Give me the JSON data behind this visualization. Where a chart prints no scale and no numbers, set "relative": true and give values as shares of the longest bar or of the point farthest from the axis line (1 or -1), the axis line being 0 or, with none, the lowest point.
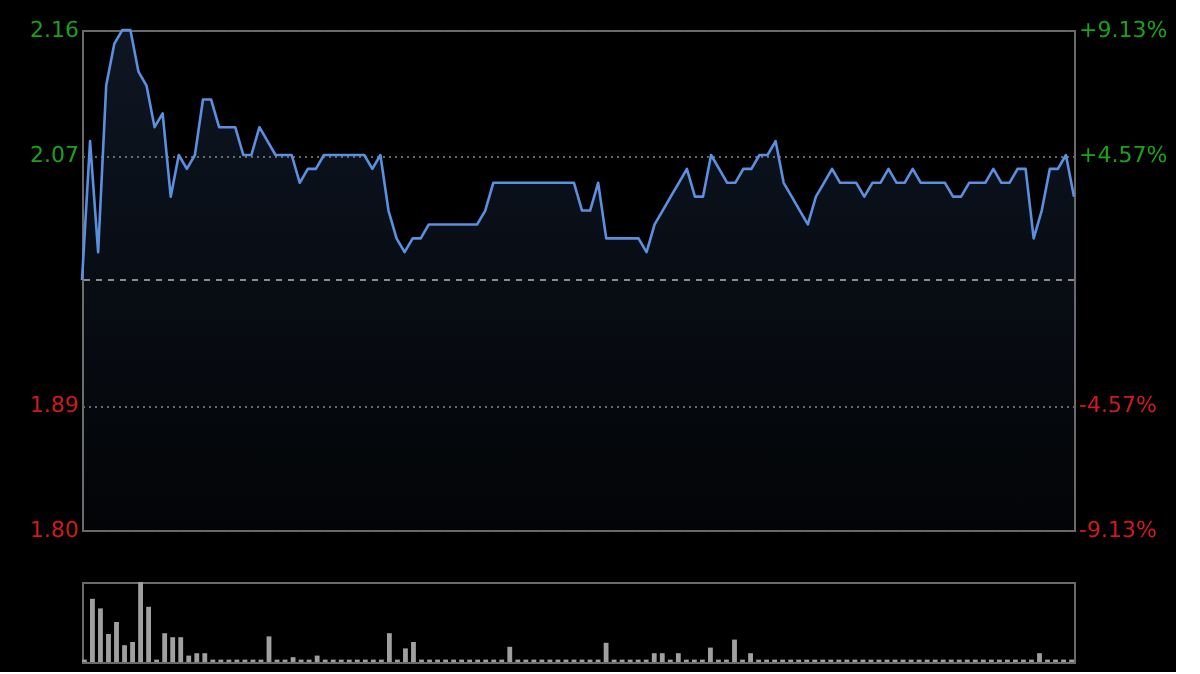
{
  "chart_data": [
    {
      "type": "area",
      "tick_labels": "y",
      "grid": "y",
      "ylim": [
        1.8,
        2.16
      ],
      "yticks": [
        {
          "value": 1.8,
          "label": "1.80"
        },
        1.89,
        2.07,
        2.16
      ],
      "y2lim": [
        -9.13,
        9.13
      ],
      "y2ticks": [
        {
          "value": -9.13,
          "label": "-9.13%"
        },
        {
          "value": -4.57,
          "label": "-4.57%"
        },
        {
          "value": 4.57,
          "label": "+4.57%"
        },
        {
          "value": 9.13,
          "label": "+9.13%"
        }
      ],
      "ref_lines": [
        {
          "axis": "y2",
          "value": 0,
          "line_style": "dashed"
        }
      ],
      "categories": [
        null,
        null,
        null,
        null,
        null,
        null,
        null,
        null,
        null,
        null,
        null,
        null,
        null,
        null,
        null,
        null,
        null,
        null,
        null,
        null,
        null,
        null,
        null,
        null,
        null,
        null,
        null,
        null,
        null,
        null,
        null,
        null,
        null,
        null,
        null,
        null,
        null,
        null,
        null,
        null,
        null,
        null,
        null,
        null,
        null,
        null,
        null,
        null,
        null,
        null,
        null,
        null,
        null,
        null,
        null,
        null,
        null,
        null,
        null,
        null,
        null,
        null,
        null,
        null,
        null,
        null,
        null,
        null,
        null,
        null,
        null,
        null,
        null,
        null,
        null,
        null,
        null,
        null,
        null,
        null,
        null,
        null,
        null,
        null,
        null,
        null,
        null,
        null,
        null,
        null,
        null,
        null,
        null,
        null,
        null,
        null,
        null,
        null,
        null,
        null,
        null,
        null,
        null,
        null,
        null,
        null,
        null,
        null,
        null,
        null,
        null,
        null,
        null,
        null,
        null,
        null,
        null,
        null,
        null,
        null,
        null,
        null,
        null,
        null
      ],
      "series": [
        {
          "color": "#5b8fe0",
          "values": [
            1.98,
            2.08,
            2.0,
            2.12,
            2.15,
            2.16,
            2.16,
            2.13,
            2.12,
            2.09,
            2.1,
            2.04,
            2.07,
            2.06,
            2.07,
            2.11,
            2.11,
            2.09,
            2.09,
            2.09,
            2.07,
            2.07,
            2.09,
            2.08,
            2.07,
            2.07,
            2.07,
            2.05,
            2.06,
            2.06,
            2.07,
            2.07,
            2.07,
            2.07,
            2.07,
            2.07,
            2.06,
            2.07,
            2.03,
            2.01,
            2.0,
            2.01,
            2.01,
            2.02,
            2.02,
            2.02,
            2.02,
            2.02,
            2.02,
            2.02,
            2.03,
            2.05,
            2.05,
            2.05,
            2.05,
            2.05,
            2.05,
            2.05,
            2.05,
            2.05,
            2.05,
            2.05,
            2.03,
            2.03,
            2.05,
            2.01,
            2.01,
            2.01,
            2.01,
            2.01,
            2.0,
            2.02,
            2.03,
            2.04,
            2.05,
            2.06,
            2.04,
            2.04,
            2.07,
            2.06,
            2.05,
            2.05,
            2.06,
            2.06,
            2.07,
            2.07,
            2.08,
            2.05,
            2.04,
            2.03,
            2.02,
            2.04,
            2.05,
            2.06,
            2.05,
            2.05,
            2.05,
            2.04,
            2.05,
            2.05,
            2.06,
            2.05,
            2.05,
            2.06,
            2.05,
            2.05,
            2.05,
            2.05,
            2.04,
            2.04,
            2.05,
            2.05,
            2.05,
            2.06,
            2.05,
            2.05,
            2.06,
            2.06,
            2.01,
            2.03,
            2.06,
            2.06,
            2.07,
            2.04
          ]
        }
      ]
    },
    {
      "type": "bar",
      "relative": true,
      "tick_labels": false,
      "categories": [
        null,
        null,
        null,
        null,
        null,
        null,
        null,
        null,
        null,
        null,
        null,
        null,
        null,
        null,
        null,
        null,
        null,
        null,
        null,
        null,
        null,
        null,
        null,
        null,
        null,
        null,
        null,
        null,
        null,
        null,
        null,
        null,
        null,
        null,
        null,
        null,
        null,
        null,
        null,
        null,
        null,
        null,
        null,
        null,
        null,
        null,
        null,
        null,
        null,
        null,
        null,
        null,
        null,
        null,
        null,
        null,
        null,
        null,
        null,
        null,
        null,
        null,
        null,
        null,
        null,
        null,
        null,
        null,
        null,
        null,
        null,
        null,
        null,
        null,
        null,
        null,
        null,
        null,
        null,
        null,
        null,
        null,
        null,
        null,
        null,
        null,
        null,
        null,
        null,
        null,
        null,
        null,
        null,
        null,
        null,
        null,
        null,
        null,
        null,
        null,
        null,
        null,
        null,
        null,
        null,
        null,
        null,
        null,
        null,
        null,
        null,
        null,
        null,
        null,
        null,
        null,
        null,
        null,
        null,
        null,
        null,
        null,
        null,
        null
      ],
      "series": [
        {
          "color": "#a0a0a0",
          "values": [
            0.03,
            0.79,
            0.67,
            0.35,
            0.5,
            0.21,
            0.25,
            1,
            0.69,
            0.03,
            0.36,
            0.31,
            0.31,
            0.08,
            0.11,
            0.11,
            0.03,
            0.03,
            0.03,
            0.03,
            0.03,
            0.03,
            0.03,
            0.32,
            0.03,
            0.03,
            0.06,
            0.03,
            0.03,
            0.08,
            0.03,
            0.03,
            0.03,
            0.03,
            0.03,
            0.03,
            0.03,
            0.03,
            0.36,
            0.03,
            0.17,
            0.25,
            0.03,
            0.03,
            0.03,
            0.03,
            0.03,
            0.03,
            0.03,
            0.03,
            0.03,
            0.03,
            0.03,
            0.19,
            0.03,
            0.03,
            0.03,
            0.03,
            0.03,
            0.03,
            0.03,
            0.03,
            0.03,
            0.03,
            0.03,
            0.24,
            0.03,
            0.03,
            0.03,
            0.03,
            0.03,
            0.11,
            0.11,
            0.03,
            0.11,
            0.03,
            0.03,
            0.03,
            0.18,
            0.03,
            0.03,
            0.28,
            0.03,
            0.11,
            0.03,
            0.03,
            0.03,
            0.03,
            0.03,
            0.03,
            0.03,
            0.03,
            0.03,
            0.03,
            0.03,
            0.03,
            0.03,
            0.03,
            0.03,
            0.03,
            0.03,
            0.03,
            0.03,
            0.03,
            0.03,
            0.03,
            0.03,
            0.03,
            0.03,
            0.03,
            0.03,
            0.03,
            0.03,
            0.03,
            0.03,
            0.03,
            0.03,
            0.03,
            0.03,
            0.11,
            0.03,
            0.03,
            0.03,
            0.03
          ]
        }
      ]
    }
  ]
}
